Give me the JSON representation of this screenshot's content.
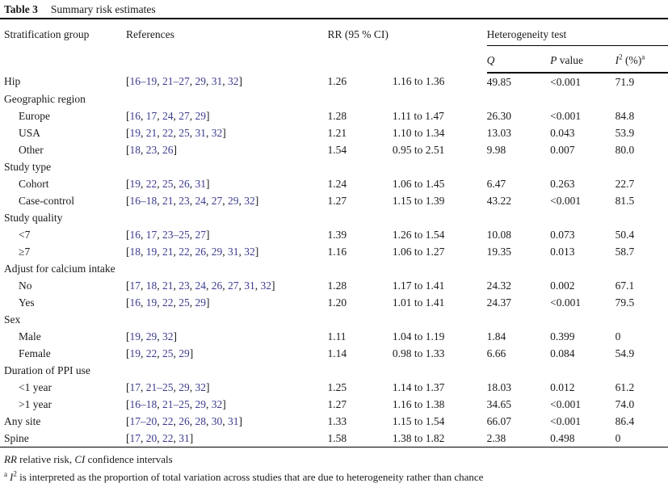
{
  "caption": {
    "label": "Table 3",
    "title": "Summary risk estimates"
  },
  "header": {
    "group": "Stratification group",
    "references": "References",
    "rr_ci": "RR (95 % CI)",
    "heterogeneity": "Heterogeneity test",
    "q": "Q",
    "p_italic": "P",
    "p_rest": " value",
    "i2_base": "I",
    "i2_sup": "2",
    "i2_rest": " (%)",
    "i2_note": "a"
  },
  "rows": [
    {
      "group": "Hip",
      "indent": false,
      "refs": "[16–19, 21–27, 29, 31, 32]",
      "rr": "1.26",
      "ci": "1.16 to 1.36",
      "q": "49.85",
      "p": "<0.001",
      "i2": "71.9"
    },
    {
      "group": "Geographic region",
      "indent": false,
      "refs": "",
      "rr": "",
      "ci": "",
      "q": "",
      "p": "",
      "i2": ""
    },
    {
      "group": "Europe",
      "indent": true,
      "refs": "[16, 17, 24, 27, 29]",
      "rr": "1.28",
      "ci": "1.11 to 1.47",
      "q": "26.30",
      "p": "<0.001",
      "i2": "84.8"
    },
    {
      "group": "USA",
      "indent": true,
      "refs": "[19, 21, 22, 25, 31, 32]",
      "rr": "1.21",
      "ci": "1.10 to 1.34",
      "q": "13.03",
      "p": "0.043",
      "i2": "53.9"
    },
    {
      "group": "Other",
      "indent": true,
      "refs": "[18, 23, 26]",
      "rr": "1.54",
      "ci": "0.95 to 2.51",
      "q": "9.98",
      "p": "0.007",
      "i2": "80.0"
    },
    {
      "group": "Study type",
      "indent": false,
      "refs": "",
      "rr": "",
      "ci": "",
      "q": "",
      "p": "",
      "i2": ""
    },
    {
      "group": "Cohort",
      "indent": true,
      "refs": "[19, 22, 25, 26, 31]",
      "rr": "1.24",
      "ci": "1.06 to 1.45",
      "q": "6.47",
      "p": "0.263",
      "i2": "22.7"
    },
    {
      "group": "Case-control",
      "indent": true,
      "refs": "[16–18, 21, 23, 24, 27, 29, 32]",
      "rr": "1.27",
      "ci": "1.15 to 1.39",
      "q": "43.22",
      "p": "<0.001",
      "i2": "81.5"
    },
    {
      "group": "Study quality",
      "indent": false,
      "refs": "",
      "rr": "",
      "ci": "",
      "q": "",
      "p": "",
      "i2": ""
    },
    {
      "group": "<7",
      "indent": true,
      "refs": "[16, 17, 23–25, 27]",
      "rr": "1.39",
      "ci": "1.26 to 1.54",
      "q": "10.08",
      "p": "0.073",
      "i2": "50.4"
    },
    {
      "group": "≥7",
      "indent": true,
      "refs": "[18, 19, 21, 22, 26, 29, 31, 32]",
      "rr": "1.16",
      "ci": "1.06 to 1.27",
      "q": "19.35",
      "p": "0.013",
      "i2": "58.7"
    },
    {
      "group": "Adjust for calcium intake",
      "indent": false,
      "refs": "",
      "rr": "",
      "ci": "",
      "q": "",
      "p": "",
      "i2": ""
    },
    {
      "group": "No",
      "indent": true,
      "refs": "[17, 18, 21, 23, 24, 26, 27, 31, 32]",
      "rr": "1.28",
      "ci": "1.17 to 1.41",
      "q": "24.32",
      "p": "0.002",
      "i2": "67.1"
    },
    {
      "group": "Yes",
      "indent": true,
      "refs": "[16, 19, 22, 25, 29]",
      "rr": "1.20",
      "ci": "1.01 to 1.41",
      "q": "24.37",
      "p": "<0.001",
      "i2": "79.5"
    },
    {
      "group": "Sex",
      "indent": false,
      "refs": "",
      "rr": "",
      "ci": "",
      "q": "",
      "p": "",
      "i2": ""
    },
    {
      "group": "Male",
      "indent": true,
      "refs": "[19, 29, 32]",
      "rr": "1.11",
      "ci": "1.04 to 1.19",
      "q": "1.84",
      "p": "0.399",
      "i2": "0"
    },
    {
      "group": "Female",
      "indent": true,
      "refs": "[19, 22, 25, 29]",
      "rr": "1.14",
      "ci": "0.98 to 1.33",
      "q": "6.66",
      "p": "0.084",
      "i2": "54.9"
    },
    {
      "group": "Duration of PPI use",
      "indent": false,
      "refs": "",
      "rr": "",
      "ci": "",
      "q": "",
      "p": "",
      "i2": ""
    },
    {
      "group": "<1 year",
      "indent": true,
      "refs": "[17, 21–25, 29, 32]",
      "rr": "1.25",
      "ci": "1.14 to 1.37",
      "q": "18.03",
      "p": "0.012",
      "i2": "61.2"
    },
    {
      "group": ">1 year",
      "indent": true,
      "refs": "[16–18, 21–25, 29, 32]",
      "rr": "1.27",
      "ci": "1.16 to 1.38",
      "q": "34.65",
      "p": "<0.001",
      "i2": "74.0"
    },
    {
      "group": "Any site",
      "indent": false,
      "refs": "[17–20, 22, 26, 28, 30, 31]",
      "rr": "1.33",
      "ci": "1.15 to 1.54",
      "q": "66.07",
      "p": "<0.001",
      "i2": "86.4"
    },
    {
      "group": "Spine",
      "indent": false,
      "refs": "[17, 20, 22, 31]",
      "rr": "1.58",
      "ci": "1.38 to 1.82",
      "q": "2.38",
      "p": "0.498",
      "i2": "0"
    }
  ],
  "footnotes": {
    "abbrev": {
      "i1": "RR",
      "t1": " relative risk, ",
      "i2": "CI",
      "t2": " confidence intervals"
    },
    "note_a": {
      "marker": "a",
      "symbol_base": "I",
      "symbol_sup": "2",
      "text": " is interpreted as the proportion of total variation across studies that are due to heterogeneity rather than chance"
    }
  },
  "colors": {
    "reference_link": "#3b3b8f",
    "text": "#1a1a1a",
    "rule": "#000000"
  }
}
